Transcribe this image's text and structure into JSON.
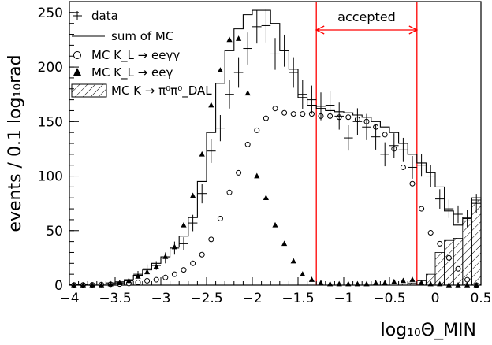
{
  "chart_data": {
    "type": "line",
    "xlabel": "log₁₀Θ_MIN",
    "ylabel": "events / 0.1 log₁₀rad",
    "xlim": [
      -4,
      0.5
    ],
    "ylim": [
      0,
      260
    ],
    "x_ticks": [
      -4,
      -3.5,
      -3,
      -2.5,
      -2,
      -1.5,
      -1,
      -0.5,
      0,
      0.5
    ],
    "x_tick_labels": [
      "−4",
      "−3.5",
      "−3",
      "−2.5",
      "−2",
      "−1.5",
      "−1",
      "−0.5",
      "0",
      "0.5"
    ],
    "y_ticks": [
      0,
      50,
      100,
      150,
      200,
      250
    ],
    "y_tick_labels": [
      "0",
      "50",
      "100",
      "150",
      "200",
      "250"
    ],
    "bin_width": 0.1,
    "bin_lows": [
      -4.0,
      -3.9,
      -3.8,
      -3.7,
      -3.6,
      -3.5,
      -3.4,
      -3.3,
      -3.2,
      -3.1,
      -3.0,
      -2.9,
      -2.8,
      -2.7,
      -2.6,
      -2.5,
      -2.4,
      -2.3,
      -2.2,
      -2.1,
      -2.0,
      -1.9,
      -1.8,
      -1.7,
      -1.6,
      -1.5,
      -1.4,
      -1.3,
      -1.2,
      -1.1,
      -1.0,
      -0.9,
      -0.8,
      -0.7,
      -0.6,
      -0.5,
      -0.4,
      -0.3,
      -0.2,
      -0.1,
      0.0,
      0.1,
      0.2,
      0.3,
      0.4
    ],
    "bin_centers": [
      -3.95,
      -3.85,
      -3.75,
      -3.65,
      -3.55,
      -3.45,
      -3.35,
      -3.25,
      -3.15,
      -3.05,
      -2.95,
      -2.85,
      -2.75,
      -2.65,
      -2.55,
      -2.45,
      -2.35,
      -2.25,
      -2.15,
      -2.05,
      -1.95,
      -1.85,
      -1.75,
      -1.65,
      -1.55,
      -1.45,
      -1.35,
      -1.25,
      -1.15,
      -1.05,
      -0.95,
      -0.85,
      -0.75,
      -0.65,
      -0.55,
      -0.45,
      -0.35,
      -0.25,
      -0.15,
      -0.05,
      0.05,
      0.15,
      0.25,
      0.35,
      0.45
    ],
    "legend": [
      {
        "label": "data",
        "marker": "cross"
      },
      {
        "label": "sum of MC",
        "marker": "line"
      },
      {
        "label": "MC K_L → eeγγ",
        "marker": "open-circle"
      },
      {
        "label": "MC K_L → eeγ",
        "marker": "filled-triangle"
      },
      {
        "label": "MC K → π⁰π⁰_DAL",
        "marker": "hatched-box"
      }
    ],
    "series": [
      {
        "name": "sum of MC",
        "style": "step",
        "values": [
          0.5,
          0.5,
          1,
          1,
          2,
          3,
          5,
          9,
          14,
          20,
          26,
          35,
          45,
          62,
          95,
          140,
          185,
          215,
          235,
          248,
          252,
          252,
          240,
          215,
          198,
          172,
          165,
          162,
          160,
          159,
          158,
          156,
          154,
          150,
          145,
          140,
          130,
          120,
          112,
          103,
          90,
          68,
          55,
          62,
          80
        ]
      },
      {
        "name": "data",
        "style": "cross",
        "values": [
          0,
          0,
          0,
          0,
          1,
          2,
          4,
          10,
          15,
          18,
          25,
          34,
          38,
          57,
          84,
          123,
          144,
          175,
          195,
          217,
          237,
          238,
          212,
          215,
          195,
          175,
          170,
          164,
          165,
          155,
          135,
          150,
          145,
          136,
          120,
          128,
          124,
          108,
          110,
          100,
          79,
          70,
          65,
          61,
          75
        ],
        "errors": [
          0,
          0,
          0,
          0,
          1,
          1.5,
          2,
          3,
          4,
          4,
          5,
          6,
          6,
          7.5,
          9,
          11,
          12,
          13,
          14,
          14.7,
          15.4,
          15.4,
          14.6,
          14.7,
          14,
          13.2,
          13,
          12.8,
          12.8,
          12.4,
          11.6,
          12.2,
          12,
          11.7,
          11,
          11.3,
          11.1,
          10.4,
          10.5,
          10,
          8.9,
          8.4,
          8,
          7.8,
          8.7
        ]
      },
      {
        "name": "MC K_L → eeγγ",
        "style": "open-circle",
        "values": [
          0.2,
          0.2,
          0.3,
          0.5,
          0.8,
          1,
          1.5,
          2.5,
          4,
          5,
          7,
          10,
          14,
          20,
          28,
          42,
          61,
          85,
          103,
          129,
          142,
          153,
          162,
          158,
          157,
          157,
          157,
          155,
          155,
          154,
          154,
          152,
          150,
          145,
          138,
          125,
          108,
          93,
          70,
          48,
          38,
          25,
          15,
          5,
          0
        ]
      },
      {
        "name": "MC K_L → eeγ",
        "style": "filled-triangle",
        "values": [
          0,
          0,
          0,
          0,
          1,
          2,
          4,
          8,
          12,
          17,
          26,
          35,
          55,
          82,
          120,
          165,
          197,
          225,
          226,
          176,
          100,
          80,
          55,
          38,
          22,
          10,
          5,
          2,
          1,
          1,
          1,
          1,
          1,
          2,
          2,
          3,
          4,
          5,
          2,
          1,
          1,
          0,
          0,
          0,
          0
        ]
      },
      {
        "name": "MC K → π⁰π⁰_DAL",
        "style": "hatched",
        "values": [
          0,
          0,
          0,
          0,
          0,
          0,
          0,
          0,
          0,
          0,
          0,
          0,
          0,
          0,
          0,
          0,
          0,
          0,
          0,
          0,
          0,
          0,
          0,
          0,
          0,
          0,
          0,
          0,
          0,
          0,
          0,
          0,
          0,
          0,
          0,
          0,
          1,
          2,
          4,
          10,
          30,
          41,
          43,
          59,
          78
        ]
      }
    ],
    "accepted_region": {
      "label": "accepted",
      "from": -1.3,
      "to": -0.2
    }
  },
  "colors": {
    "axis": "#000000",
    "cut_lines": "#ff0000",
    "background": "#ffffff"
  }
}
